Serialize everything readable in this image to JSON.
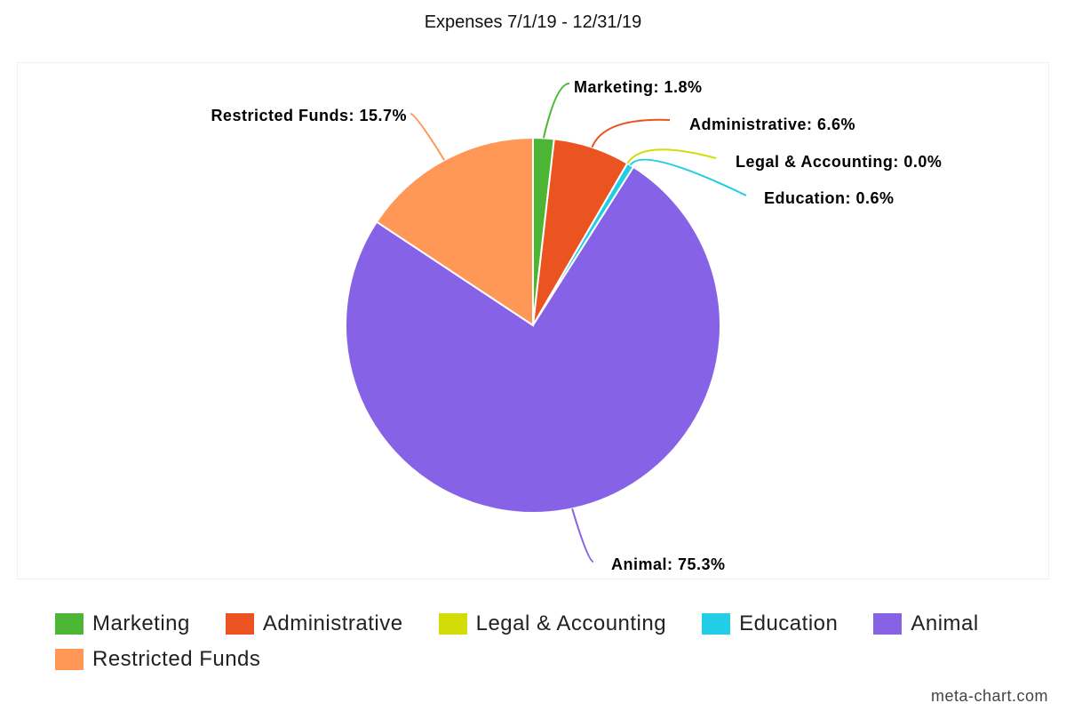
{
  "chart_data": {
    "type": "pie",
    "title": "Expenses 7/1/19 - 12/31/19",
    "series": [
      {
        "name": "Marketing",
        "value": 1.8,
        "label": "Marketing: 1.8%",
        "color": "#4db534"
      },
      {
        "name": "Administrative",
        "value": 6.6,
        "label": "Administrative: 6.6%",
        "color": "#eb5420"
      },
      {
        "name": "Legal & Accounting",
        "value": 0.0,
        "label": "Legal & Accounting: 0.0%",
        "color": "#d4dc07"
      },
      {
        "name": "Education",
        "value": 0.6,
        "label": "Education: 0.6%",
        "color": "#22cde6"
      },
      {
        "name": "Animal",
        "value": 75.3,
        "label": "Animal: 75.3%",
        "color": "#8663e6"
      },
      {
        "name": "Restricted Funds",
        "value": 15.7,
        "label": "Restricted Funds: 15.7%",
        "color": "#ff9857"
      }
    ],
    "legend_position": "bottom"
  },
  "watermark": "meta-chart.com"
}
